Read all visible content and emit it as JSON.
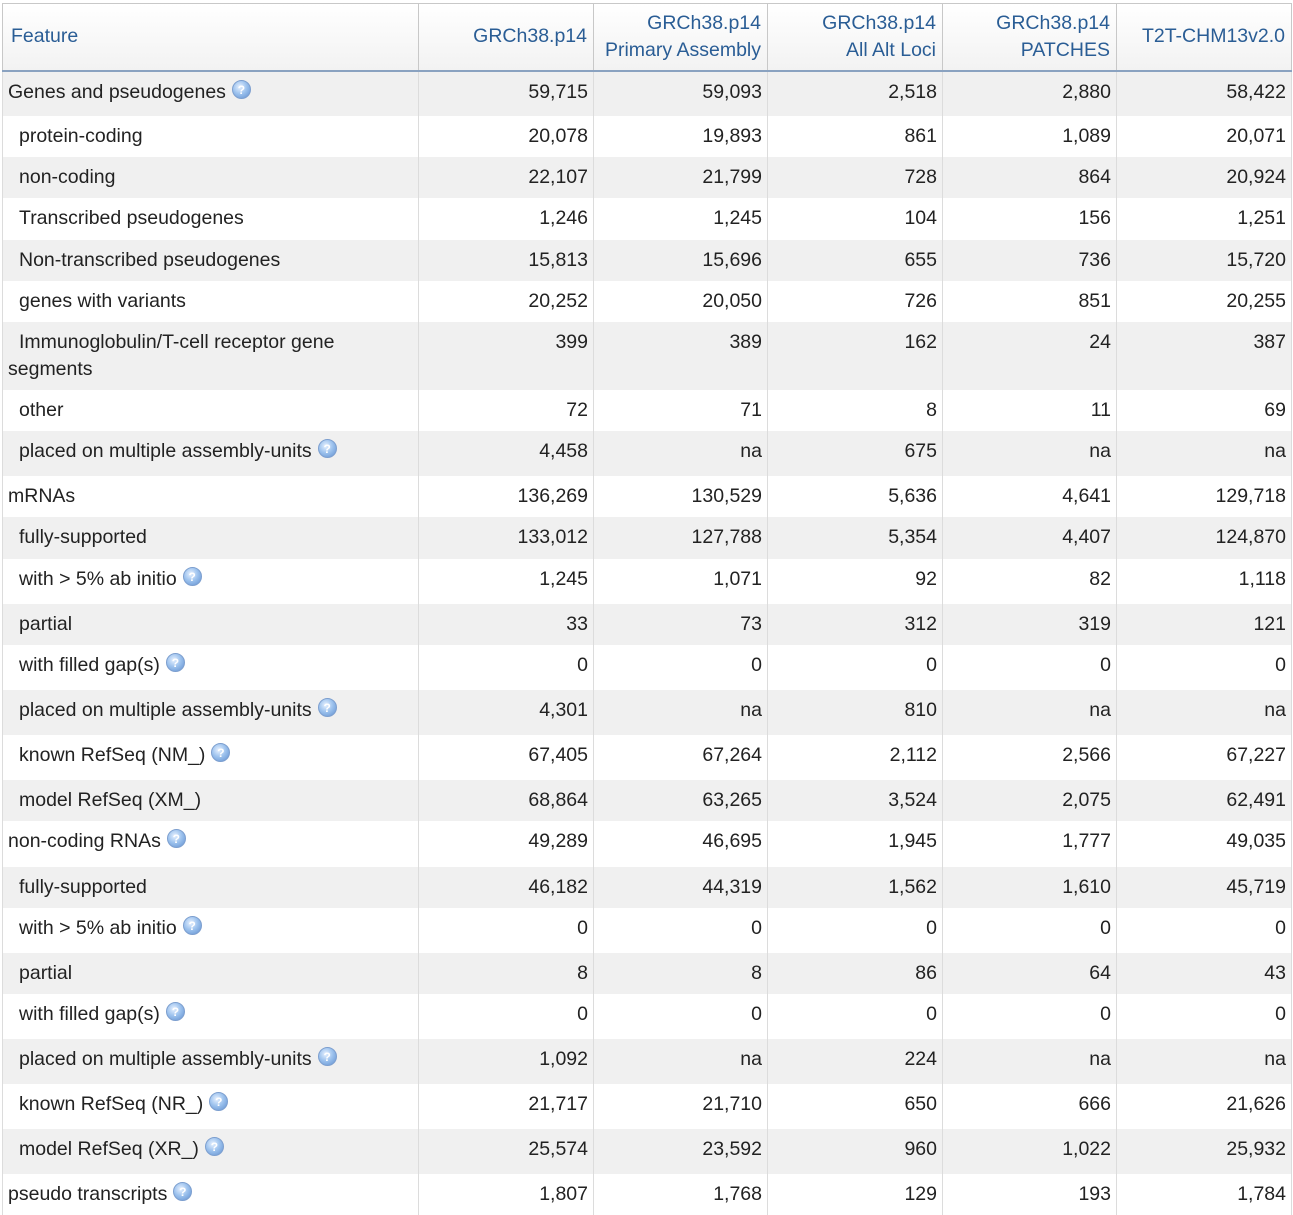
{
  "header": {
    "feature": "Feature",
    "cols": [
      {
        "l1": "GRCh38.p14",
        "l2": ""
      },
      {
        "l1": "GRCh38.p14",
        "l2": "Primary Assembly"
      },
      {
        "l1": "GRCh38.p14",
        "l2": "All Alt Loci"
      },
      {
        "l1": "GRCh38.p14",
        "l2": "PATCHES"
      },
      {
        "l1": "T2T-CHM13v2.0",
        "l2": ""
      }
    ]
  },
  "help_icon": "info-icon",
  "rows": [
    {
      "label": "Genes and pseudogenes",
      "sub": false,
      "help": true,
      "values": [
        "59,715",
        "59,093",
        "2,518",
        "2,880",
        "58,422"
      ],
      "h": 45
    },
    {
      "label": "protein-coding",
      "sub": true,
      "help": false,
      "values": [
        "20,078",
        "19,893",
        "861",
        "1,089",
        "20,071"
      ],
      "h": 41
    },
    {
      "label": "non-coding",
      "sub": true,
      "help": false,
      "values": [
        "22,107",
        "21,799",
        "728",
        "864",
        "20,924"
      ],
      "h": 41
    },
    {
      "label": "Transcribed pseudogenes",
      "sub": true,
      "help": false,
      "values": [
        "1,246",
        "1,245",
        "104",
        "156",
        "1,251"
      ],
      "h": 42
    },
    {
      "label": "Non-transcribed pseudogenes",
      "sub": true,
      "help": false,
      "values": [
        "15,813",
        "15,696",
        "655",
        "736",
        "15,720"
      ],
      "h": 41
    },
    {
      "label": "genes with variants",
      "sub": true,
      "help": false,
      "values": [
        "20,252",
        "20,050",
        "726",
        "851",
        "20,255"
      ],
      "h": 41
    },
    {
      "label": "Immunoglobulin/T-cell receptor gene segments",
      "sub": true,
      "help": false,
      "values": [
        "399",
        "389",
        "162",
        "24",
        "387"
      ],
      "h": 68
    },
    {
      "label": "other",
      "sub": true,
      "help": false,
      "values": [
        "72",
        "71",
        "8",
        "11",
        "69"
      ],
      "h": 41
    },
    {
      "label": "placed on multiple assembly-units",
      "sub": true,
      "help": true,
      "values": [
        "4,458",
        "na",
        "675",
        "na",
        "na"
      ],
      "h": 45
    },
    {
      "label": "mRNAs",
      "sub": false,
      "help": false,
      "values": [
        "136,269",
        "130,529",
        "5,636",
        "4,641",
        "129,718"
      ],
      "h": 41
    },
    {
      "label": "fully-supported",
      "sub": true,
      "help": false,
      "values": [
        "133,012",
        "127,788",
        "5,354",
        "4,407",
        "124,870"
      ],
      "h": 42
    },
    {
      "label": "with > 5% ab initio",
      "sub": true,
      "help": true,
      "values": [
        "1,245",
        "1,071",
        "92",
        "82",
        "1,118"
      ],
      "h": 45
    },
    {
      "label": "partial",
      "sub": true,
      "help": false,
      "values": [
        "33",
        "73",
        "312",
        "319",
        "121"
      ],
      "h": 41
    },
    {
      "label": "with filled gap(s)",
      "sub": true,
      "help": true,
      "values": [
        "0",
        "0",
        "0",
        "0",
        "0"
      ],
      "h": 45
    },
    {
      "label": "placed on multiple assembly-units",
      "sub": true,
      "help": true,
      "values": [
        "4,301",
        "na",
        "810",
        "na",
        "na"
      ],
      "h": 45
    },
    {
      "label": "known RefSeq (NM_)",
      "sub": true,
      "help": true,
      "values": [
        "67,405",
        "67,264",
        "2,112",
        "2,566",
        "67,227"
      ],
      "h": 45
    },
    {
      "label": "model RefSeq (XM_)",
      "sub": true,
      "help": false,
      "values": [
        "68,864",
        "63,265",
        "3,524",
        "2,075",
        "62,491"
      ],
      "h": 41
    },
    {
      "label": "non-coding RNAs",
      "sub": false,
      "help": true,
      "values": [
        "49,289",
        "46,695",
        "1,945",
        "1,777",
        "49,035"
      ],
      "h": 46
    },
    {
      "label": "fully-supported",
      "sub": true,
      "help": false,
      "values": [
        "46,182",
        "44,319",
        "1,562",
        "1,610",
        "45,719"
      ],
      "h": 41
    },
    {
      "label": "with > 5% ab initio",
      "sub": true,
      "help": true,
      "values": [
        "0",
        "0",
        "0",
        "0",
        "0"
      ],
      "h": 45
    },
    {
      "label": "partial",
      "sub": true,
      "help": false,
      "values": [
        "8",
        "8",
        "86",
        "64",
        "43"
      ],
      "h": 41
    },
    {
      "label": "with filled gap(s)",
      "sub": true,
      "help": true,
      "values": [
        "0",
        "0",
        "0",
        "0",
        "0"
      ],
      "h": 45
    },
    {
      "label": "placed on multiple assembly-units",
      "sub": true,
      "help": true,
      "values": [
        "1,092",
        "na",
        "224",
        "na",
        "na"
      ],
      "h": 45
    },
    {
      "label": "known RefSeq (NR_)",
      "sub": true,
      "help": true,
      "values": [
        "21,717",
        "21,710",
        "650",
        "666",
        "21,626"
      ],
      "h": 45
    },
    {
      "label": "model RefSeq (XR_)",
      "sub": true,
      "help": true,
      "values": [
        "25,574",
        "23,592",
        "960",
        "1,022",
        "25,932"
      ],
      "h": 45
    },
    {
      "label": "pseudo transcripts",
      "sub": false,
      "help": true,
      "values": [
        "1,807",
        "1,768",
        "129",
        "193",
        "1,784"
      ],
      "h": 41
    }
  ]
}
